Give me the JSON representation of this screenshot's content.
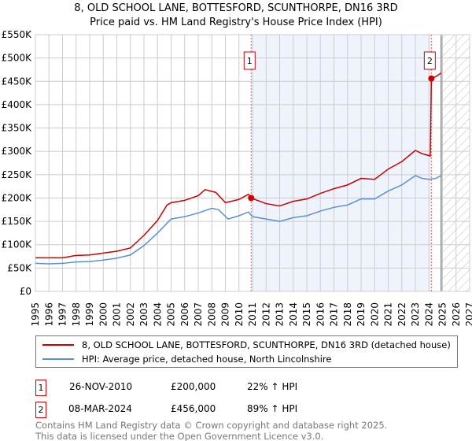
{
  "chart_data": {
    "type": "line",
    "title": "8, OLD SCHOOL LANE, BOTTESFORD, SCUNTHORPE, DN16 3RD",
    "subtitle": "Price paid vs. HM Land Registry's House Price Index (HPI)",
    "xlim": [
      1995,
      2027
    ],
    "ylim": [
      0,
      550000
    ],
    "yticks": [
      0,
      50000,
      100000,
      150000,
      200000,
      250000,
      300000,
      350000,
      400000,
      450000,
      500000,
      550000
    ],
    "ytick_labels": [
      "£0",
      "£50K",
      "£100K",
      "£150K",
      "£200K",
      "£250K",
      "£300K",
      "£350K",
      "£400K",
      "£450K",
      "£500K",
      "£550K"
    ],
    "xticks": [
      1995,
      1996,
      1997,
      1998,
      1999,
      2000,
      2001,
      2002,
      2003,
      2004,
      2005,
      2006,
      2007,
      2008,
      2009,
      2010,
      2011,
      2012,
      2013,
      2014,
      2015,
      2016,
      2017,
      2018,
      2019,
      2020,
      2021,
      2022,
      2023,
      2024,
      2025,
      2026,
      2027
    ],
    "grid": true,
    "shaded_range": [
      2010.9,
      2024.18
    ],
    "forecast_hatch_from": 2024.9,
    "series": [
      {
        "name": "8, OLD SCHOOL LANE, BOTTESFORD, SCUNTHORPE, DN16 3RD (detached house)",
        "color": "#cc0000",
        "x": [
          1995,
          1996,
          1997,
          1998,
          1999,
          2000,
          2001,
          2002,
          2003,
          2004,
          2004.7,
          2005,
          2006,
          2007,
          2007.5,
          2008.3,
          2009,
          2010,
          2010.7,
          2010.9,
          2012,
          2013,
          2014,
          2015,
          2016,
          2017,
          2018,
          2019,
          2020,
          2021,
          2022,
          2023,
          2023.5,
          2024.1,
          2024.18,
          2024.5,
          2024.9
        ],
        "y": [
          72000,
          72000,
          72000,
          77000,
          78000,
          82000,
          86000,
          93000,
          120000,
          152000,
          185000,
          190000,
          195000,
          205000,
          218000,
          212000,
          190000,
          197000,
          208000,
          200000,
          188000,
          183000,
          193000,
          198000,
          210000,
          220000,
          228000,
          242000,
          240000,
          262000,
          278000,
          302000,
          295000,
          290000,
          456000,
          460000,
          468000
        ]
      },
      {
        "name": "HPI: Average price, detached house, North Lincolnshire",
        "color": "#5b8fd0",
        "x": [
          1995,
          1996,
          1997,
          1998,
          1999,
          2000,
          2001,
          2002,
          2003,
          2004,
          2005,
          2006,
          2007,
          2008,
          2008.5,
          2009.2,
          2010,
          2010.7,
          2011,
          2012,
          2013,
          2014,
          2015,
          2016,
          2017,
          2018,
          2019,
          2020,
          2021,
          2022,
          2023,
          2023.5,
          2024,
          2024.5,
          2024.9
        ],
        "y": [
          60000,
          59000,
          60000,
          63000,
          64000,
          67000,
          71000,
          78000,
          98000,
          125000,
          155000,
          160000,
          168000,
          178000,
          175000,
          155000,
          162000,
          170000,
          160000,
          155000,
          150000,
          158000,
          162000,
          172000,
          180000,
          185000,
          198000,
          198000,
          215000,
          228000,
          248000,
          242000,
          240000,
          242000,
          248000
        ]
      }
    ],
    "sales": [
      {
        "label": "1",
        "date": "26-NOV-2010",
        "x": 2010.9,
        "price": "£200,000",
        "value": 200000,
        "hpi": "22% ↑ HPI"
      },
      {
        "label": "2",
        "date": "08-MAR-2024",
        "x": 2024.18,
        "price": "£456,000",
        "value": 456000,
        "hpi": "89% ↑ HPI"
      }
    ]
  },
  "footer": [
    "Contains HM Land Registry data © Crown copyright and database right 2025.",
    "This data is licensed under the Open Government Licence v3.0."
  ]
}
